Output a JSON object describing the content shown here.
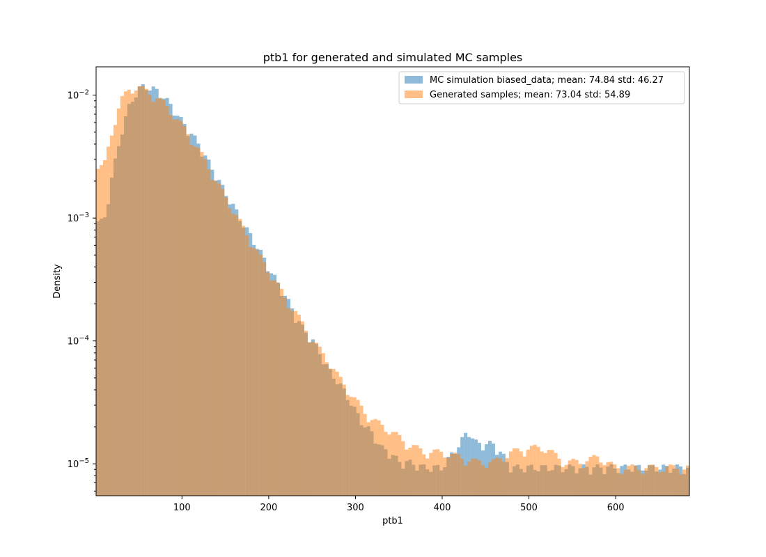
{
  "chart_data": {
    "type": "histogram",
    "title": "ptb1 for generated and simulated MC samples",
    "xlabel": "ptb1",
    "ylabel": "Density",
    "xlim": [
      1,
      685
    ],
    "ylim": [
      5.5e-06,
      0.017
    ],
    "yscale": "log",
    "grid": false,
    "legend_position": "top-right",
    "x_ticks": [
      100,
      200,
      300,
      400,
      500,
      600
    ],
    "x_tick_labels": [
      "100",
      "200",
      "300",
      "400",
      "500",
      "600"
    ],
    "y_ticks": [
      1e-05,
      0.0001,
      0.001,
      0.01
    ],
    "y_tick_labels": [
      {
        "base": "10",
        "exp": "−5"
      },
      {
        "base": "10",
        "exp": "−4"
      },
      {
        "base": "10",
        "exp": "−3"
      },
      {
        "base": "10",
        "exp": "−2"
      }
    ],
    "colors": {
      "mc": "#1f77b4",
      "gen": "#ff7f0e",
      "overlap": "#c9a07a"
    },
    "series": [
      {
        "name": "MC simulation biased_data; mean: 74.84 std: 46.27",
        "key": "mc",
        "points": [
          [
            10,
            0.0009
          ],
          [
            20,
            0.0022
          ],
          [
            30,
            0.0048
          ],
          [
            40,
            0.0082
          ],
          [
            50,
            0.0108
          ],
          [
            55,
            0.0113
          ],
          [
            60,
            0.0113
          ],
          [
            70,
            0.0106
          ],
          [
            80,
            0.0092
          ],
          [
            90,
            0.0075
          ],
          [
            100,
            0.0059
          ],
          [
            110,
            0.0048
          ],
          [
            120,
            0.0038
          ],
          [
            130,
            0.0028
          ],
          [
            140,
            0.0021
          ],
          [
            150,
            0.00155
          ],
          [
            160,
            0.00118
          ],
          [
            170,
            0.00088
          ],
          [
            180,
            0.00068
          ],
          [
            190,
            0.00052
          ],
          [
            200,
            0.00038
          ],
          [
            210,
            0.00029
          ],
          [
            220,
            0.00022
          ],
          [
            230,
            0.00016
          ],
          [
            240,
            0.00012
          ],
          [
            250,
            0.0001
          ],
          [
            260,
            7.5e-05
          ],
          [
            270,
            5.5e-05
          ],
          [
            280,
            4.5e-05
          ],
          [
            290,
            3.5e-05
          ],
          [
            300,
            2.6e-05
          ],
          [
            310,
            2e-05
          ],
          [
            320,
            1.7e-05
          ],
          [
            330,
            1.3e-05
          ],
          [
            340,
            1.2e-05
          ],
          [
            350,
            1e-05
          ],
          [
            360,
            1e-05
          ],
          [
            380,
            9e-06
          ],
          [
            400,
            9e-06
          ],
          [
            420,
            1.4e-05
          ],
          [
            430,
            1.8e-05
          ],
          [
            440,
            1.4e-05
          ],
          [
            460,
            1.4e-05
          ],
          [
            480,
            9e-06
          ],
          [
            500,
            9e-06
          ],
          [
            520,
            9e-06
          ],
          [
            560,
            9e-06
          ],
          [
            600,
            9e-06
          ],
          [
            620,
            9e-06
          ],
          [
            680,
            9e-06
          ]
        ]
      },
      {
        "name": "Generated samples; mean: 73.04 std: 54.89",
        "key": "gen",
        "points": [
          [
            10,
            0.0025
          ],
          [
            20,
            0.0052
          ],
          [
            30,
            0.0088
          ],
          [
            40,
            0.011
          ],
          [
            50,
            0.0112
          ],
          [
            60,
            0.0104
          ],
          [
            70,
            0.0094
          ],
          [
            80,
            0.0082
          ],
          [
            90,
            0.0068
          ],
          [
            100,
            0.0055
          ],
          [
            110,
            0.0044
          ],
          [
            120,
            0.0034
          ],
          [
            130,
            0.0026
          ],
          [
            140,
            0.0019
          ],
          [
            150,
            0.00145
          ],
          [
            160,
            0.0011
          ],
          [
            170,
            0.00082
          ],
          [
            180,
            0.00062
          ],
          [
            190,
            0.00047
          ],
          [
            200,
            0.00036
          ],
          [
            210,
            0.00028
          ],
          [
            220,
            0.00021
          ],
          [
            230,
            0.00017
          ],
          [
            240,
            0.00013
          ],
          [
            250,
            0.0001
          ],
          [
            260,
            8e-05
          ],
          [
            270,
            6.5e-05
          ],
          [
            280,
            5e-05
          ],
          [
            290,
            4e-05
          ],
          [
            300,
            3.2e-05
          ],
          [
            310,
            2.6e-05
          ],
          [
            320,
            2.2e-05
          ],
          [
            330,
            2e-05
          ],
          [
            340,
            1.8e-05
          ],
          [
            350,
            1.6e-05
          ],
          [
            360,
            1.4e-05
          ],
          [
            370,
            1.3e-05
          ],
          [
            380,
            1.2e-05
          ],
          [
            400,
            1.2e-05
          ],
          [
            420,
            1.1e-05
          ],
          [
            440,
            1e-05
          ],
          [
            460,
            1e-05
          ],
          [
            480,
            1.2e-05
          ],
          [
            500,
            1.3e-05
          ],
          [
            520,
            1.3e-05
          ],
          [
            540,
            1e-05
          ],
          [
            560,
            1e-05
          ],
          [
            580,
            1.1e-05
          ],
          [
            600,
            9e-06
          ],
          [
            640,
            9e-06
          ],
          [
            680,
            9e-06
          ]
        ]
      }
    ]
  }
}
